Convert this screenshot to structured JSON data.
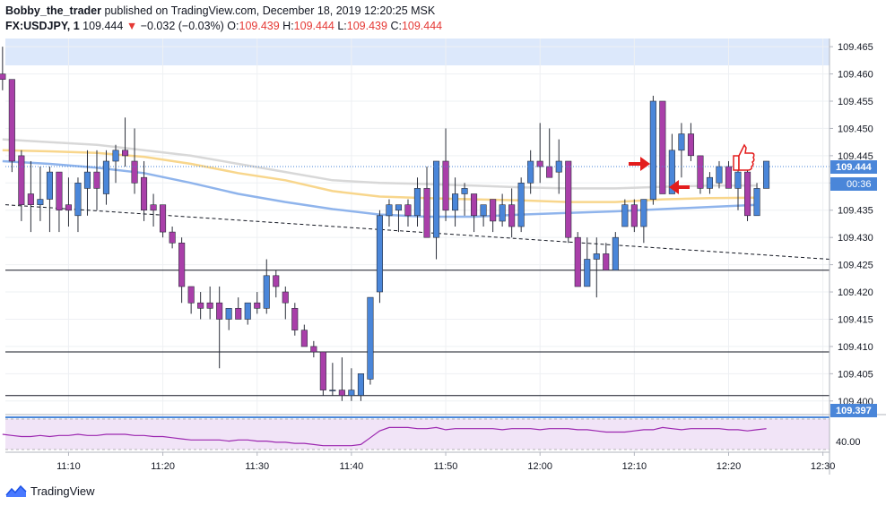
{
  "header": {
    "author": "Bobby_the_trader",
    "published": "published on TradingView.com, December 18, 2019 12:20:25 MSK",
    "symbol": "FX:USDJPY, 1",
    "last": "109.444",
    "change": "−0.032 (−0.03%)",
    "o_label": "O:",
    "o_val": "109.439",
    "h_label": "H:",
    "h_val": "109.444",
    "l_label": "L:",
    "l_val": "109.439",
    "c_label": "C:",
    "c_val": "109.444"
  },
  "footer": {
    "brand": "TradingView"
  },
  "colors": {
    "up": "#4a86d9",
    "down": "#a93fa9",
    "ma_gray": "#d8d8d8",
    "ma_orange": "#f8d68c",
    "ma_blue": "#8fb4ec",
    "accent": "#4a86d9",
    "rsi": "#9c27b0",
    "marker": "#e31c1c"
  },
  "chart_data": {
    "type": "candlestick",
    "symbol": "FX:USDJPY",
    "timeframe": "1",
    "y_ticks": [
      "109.465",
      "109.460",
      "109.455",
      "109.450",
      "109.445",
      "109.440",
      "109.435",
      "109.430",
      "109.425",
      "109.420",
      "109.415",
      "109.410",
      "109.405",
      "109.400"
    ],
    "x_ticks": [
      "11:10",
      "11:20",
      "11:30",
      "11:40",
      "11:50",
      "12:00",
      "12:10",
      "12:20",
      "12:30"
    ],
    "ylim": [
      109.3975,
      109.4665
    ],
    "xlim_minutes": [
      663.3,
      750.7
    ],
    "price_label": "109.444",
    "countdown_label": "00:36",
    "support_label": "109.397",
    "rsi_label": "40.00",
    "horizontal_lines": [
      109.424,
      109.409,
      109.401
    ],
    "highlight_line": 109.397,
    "trend_line": {
      "from": [
        663.3,
        109.436
      ],
      "to": [
        750.7,
        109.426
      ]
    },
    "candles": [
      {
        "t": 663,
        "o": 109.46,
        "h": 109.465,
        "l": 109.457,
        "c": 109.459
      },
      {
        "t": 664,
        "o": 109.459,
        "h": 109.459,
        "l": 109.442,
        "c": 109.444
      },
      {
        "t": 665,
        "o": 109.445,
        "h": 109.446,
        "l": 109.433,
        "c": 109.436
      },
      {
        "t": 666,
        "o": 109.438,
        "h": 109.444,
        "l": 109.431,
        "c": 109.436
      },
      {
        "t": 667,
        "o": 109.436,
        "h": 109.443,
        "l": 109.433,
        "c": 109.437
      },
      {
        "t": 668,
        "o": 109.437,
        "h": 109.443,
        "l": 109.431,
        "c": 109.442
      },
      {
        "t": 669,
        "o": 109.442,
        "h": 109.442,
        "l": 109.431,
        "c": 109.435
      },
      {
        "t": 670,
        "o": 109.436,
        "h": 109.441,
        "l": 109.432,
        "c": 109.435
      },
      {
        "t": 671,
        "o": 109.434,
        "h": 109.441,
        "l": 109.431,
        "c": 109.44
      },
      {
        "t": 672,
        "o": 109.439,
        "h": 109.446,
        "l": 109.434,
        "c": 109.442
      },
      {
        "t": 673,
        "o": 109.442,
        "h": 109.446,
        "l": 109.435,
        "c": 109.439
      },
      {
        "t": 674,
        "o": 109.438,
        "h": 109.446,
        "l": 109.436,
        "c": 109.444
      },
      {
        "t": 675,
        "o": 109.444,
        "h": 109.447,
        "l": 109.44,
        "c": 109.446
      },
      {
        "t": 676,
        "o": 109.446,
        "h": 109.452,
        "l": 109.443,
        "c": 109.445
      },
      {
        "t": 677,
        "o": 109.444,
        "h": 109.45,
        "l": 109.438,
        "c": 109.44
      },
      {
        "t": 678,
        "o": 109.441,
        "h": 109.444,
        "l": 109.433,
        "c": 109.435
      },
      {
        "t": 679,
        "o": 109.436,
        "h": 109.438,
        "l": 109.432,
        "c": 109.435
      },
      {
        "t": 680,
        "o": 109.436,
        "h": 109.436,
        "l": 109.43,
        "c": 109.431
      },
      {
        "t": 681,
        "o": 109.431,
        "h": 109.432,
        "l": 109.428,
        "c": 109.429
      },
      {
        "t": 682,
        "o": 109.429,
        "h": 109.43,
        "l": 109.418,
        "c": 109.421
      },
      {
        "t": 683,
        "o": 109.421,
        "h": 109.421,
        "l": 109.416,
        "c": 109.418
      },
      {
        "t": 684,
        "o": 109.418,
        "h": 109.42,
        "l": 109.415,
        "c": 109.417
      },
      {
        "t": 685,
        "o": 109.418,
        "h": 109.421,
        "l": 109.415,
        "c": 109.417
      },
      {
        "t": 686,
        "o": 109.418,
        "h": 109.421,
        "l": 109.406,
        "c": 109.415
      },
      {
        "t": 687,
        "o": 109.415,
        "h": 109.417,
        "l": 109.413,
        "c": 109.417
      },
      {
        "t": 688,
        "o": 109.417,
        "h": 109.419,
        "l": 109.415,
        "c": 109.415
      },
      {
        "t": 689,
        "o": 109.415,
        "h": 109.418,
        "l": 109.414,
        "c": 109.418
      },
      {
        "t": 690,
        "o": 109.418,
        "h": 109.42,
        "l": 109.416,
        "c": 109.417
      },
      {
        "t": 691,
        "o": 109.417,
        "h": 109.426,
        "l": 109.416,
        "c": 109.423
      },
      {
        "t": 692,
        "o": 109.423,
        "h": 109.424,
        "l": 109.419,
        "c": 109.421
      },
      {
        "t": 693,
        "o": 109.42,
        "h": 109.421,
        "l": 109.415,
        "c": 109.418
      },
      {
        "t": 694,
        "o": 109.417,
        "h": 109.418,
        "l": 109.412,
        "c": 109.413
      },
      {
        "t": 695,
        "o": 109.413,
        "h": 109.414,
        "l": 109.41,
        "c": 109.41
      },
      {
        "t": 696,
        "o": 109.41,
        "h": 109.411,
        "l": 109.408,
        "c": 109.409
      },
      {
        "t": 697,
        "o": 109.409,
        "h": 109.409,
        "l": 109.401,
        "c": 109.402
      },
      {
        "t": 698,
        "o": 109.402,
        "h": 109.407,
        "l": 109.401,
        "c": 109.402
      },
      {
        "t": 699,
        "o": 109.402,
        "h": 109.408,
        "l": 109.4,
        "c": 109.401
      },
      {
        "t": 700,
        "o": 109.401,
        "h": 109.406,
        "l": 109.4,
        "c": 109.402
      },
      {
        "t": 701,
        "o": 109.401,
        "h": 109.405,
        "l": 109.4,
        "c": 109.405
      },
      {
        "t": 702,
        "o": 109.404,
        "h": 109.419,
        "l": 109.403,
        "c": 109.419
      },
      {
        "t": 703,
        "o": 109.42,
        "h": 109.435,
        "l": 109.418,
        "c": 109.434
      },
      {
        "t": 704,
        "o": 109.434,
        "h": 109.437,
        "l": 109.432,
        "c": 109.436
      },
      {
        "t": 705,
        "o": 109.435,
        "h": 109.436,
        "l": 109.431,
        "c": 109.436
      },
      {
        "t": 706,
        "o": 109.436,
        "h": 109.437,
        "l": 109.432,
        "c": 109.434
      },
      {
        "t": 707,
        "o": 109.434,
        "h": 109.441,
        "l": 109.432,
        "c": 109.439
      },
      {
        "t": 708,
        "o": 109.439,
        "h": 109.443,
        "l": 109.43,
        "c": 109.43
      },
      {
        "t": 709,
        "o": 109.43,
        "h": 109.444,
        "l": 109.426,
        "c": 109.444
      },
      {
        "t": 710,
        "o": 109.444,
        "h": 109.45,
        "l": 109.433,
        "c": 109.435
      },
      {
        "t": 711,
        "o": 109.435,
        "h": 109.441,
        "l": 109.432,
        "c": 109.438
      },
      {
        "t": 712,
        "o": 109.438,
        "h": 109.44,
        "l": 109.434,
        "c": 109.439
      },
      {
        "t": 713,
        "o": 109.438,
        "h": 109.438,
        "l": 109.431,
        "c": 109.434
      },
      {
        "t": 714,
        "o": 109.434,
        "h": 109.436,
        "l": 109.432,
        "c": 109.436
      },
      {
        "t": 715,
        "o": 109.437,
        "h": 109.437,
        "l": 109.431,
        "c": 109.433
      },
      {
        "t": 716,
        "o": 109.433,
        "h": 109.438,
        "l": 109.432,
        "c": 109.436
      },
      {
        "t": 717,
        "o": 109.436,
        "h": 109.439,
        "l": 109.43,
        "c": 109.432
      },
      {
        "t": 718,
        "o": 109.432,
        "h": 109.441,
        "l": 109.431,
        "c": 109.44
      },
      {
        "t": 719,
        "o": 109.44,
        "h": 109.446,
        "l": 109.438,
        "c": 109.444
      },
      {
        "t": 720,
        "o": 109.444,
        "h": 109.451,
        "l": 109.44,
        "c": 109.443
      },
      {
        "t": 721,
        "o": 109.443,
        "h": 109.45,
        "l": 109.441,
        "c": 109.441
      },
      {
        "t": 722,
        "o": 109.442,
        "h": 109.448,
        "l": 109.438,
        "c": 109.444
      },
      {
        "t": 723,
        "o": 109.444,
        "h": 109.444,
        "l": 109.429,
        "c": 109.43
      },
      {
        "t": 724,
        "o": 109.43,
        "h": 109.431,
        "l": 109.421,
        "c": 109.421
      },
      {
        "t": 725,
        "o": 109.421,
        "h": 109.43,
        "l": 109.421,
        "c": 109.426
      },
      {
        "t": 726,
        "o": 109.426,
        "h": 109.43,
        "l": 109.419,
        "c": 109.427
      },
      {
        "t": 727,
        "o": 109.427,
        "h": 109.429,
        "l": 109.424,
        "c": 109.424
      },
      {
        "t": 728,
        "o": 109.424,
        "h": 109.431,
        "l": 109.424,
        "c": 109.43
      },
      {
        "t": 729,
        "o": 109.432,
        "h": 109.437,
        "l": 109.432,
        "c": 109.436
      },
      {
        "t": 730,
        "o": 109.436,
        "h": 109.437,
        "l": 109.431,
        "c": 109.432
      },
      {
        "t": 731,
        "o": 109.432,
        "h": 109.437,
        "l": 109.429,
        "c": 109.437
      },
      {
        "t": 732,
        "o": 109.437,
        "h": 109.456,
        "l": 109.436,
        "c": 109.455
      },
      {
        "t": 733,
        "o": 109.455,
        "h": 109.455,
        "l": 109.438,
        "c": 109.438
      },
      {
        "t": 734,
        "o": 109.438,
        "h": 109.449,
        "l": 109.438,
        "c": 109.446
      },
      {
        "t": 735,
        "o": 109.446,
        "h": 109.451,
        "l": 109.441,
        "c": 109.449
      },
      {
        "t": 736,
        "o": 109.449,
        "h": 109.451,
        "l": 109.444,
        "c": 109.445
      },
      {
        "t": 737,
        "o": 109.445,
        "h": 109.445,
        "l": 109.438,
        "c": 109.439
      },
      {
        "t": 738,
        "o": 109.439,
        "h": 109.442,
        "l": 109.438,
        "c": 109.441
      },
      {
        "t": 739,
        "o": 109.44,
        "h": 109.444,
        "l": 109.439,
        "c": 109.443
      },
      {
        "t": 740,
        "o": 109.443,
        "h": 109.444,
        "l": 109.439,
        "c": 109.439
      },
      {
        "t": 741,
        "o": 109.439,
        "h": 109.443,
        "l": 109.435,
        "c": 109.442
      },
      {
        "t": 742,
        "o": 109.442,
        "h": 109.443,
        "l": 109.433,
        "c": 109.434
      },
      {
        "t": 743,
        "o": 109.434,
        "h": 109.44,
        "l": 109.434,
        "c": 109.439
      },
      {
        "t": 744,
        "o": 109.439,
        "h": 109.444,
        "l": 109.439,
        "c": 109.444
      }
    ],
    "ma_lines": [
      {
        "color": "#d8d8d8",
        "points": [
          [
            663,
            109.448
          ],
          [
            668,
            109.4475
          ],
          [
            673,
            109.447
          ],
          [
            678,
            109.446
          ],
          [
            683,
            109.445
          ],
          [
            688,
            109.4435
          ],
          [
            693,
            109.442
          ],
          [
            698,
            109.4405
          ],
          [
            703,
            109.44
          ],
          [
            708,
            109.4398
          ],
          [
            713,
            109.4395
          ],
          [
            718,
            109.4392
          ],
          [
            723,
            109.439
          ],
          [
            728,
            109.439
          ],
          [
            733,
            109.4393
          ],
          [
            738,
            109.4395
          ],
          [
            743,
            109.4395
          ]
        ]
      },
      {
        "color": "#f8d68c",
        "points": [
          [
            663,
            109.446
          ],
          [
            668,
            109.4458
          ],
          [
            673,
            109.4455
          ],
          [
            678,
            109.4448
          ],
          [
            683,
            109.4435
          ],
          [
            688,
            109.4418
          ],
          [
            693,
            109.4405
          ],
          [
            698,
            109.4385
          ],
          [
            703,
            109.4375
          ],
          [
            708,
            109.4372
          ],
          [
            713,
            109.437
          ],
          [
            718,
            109.4368
          ],
          [
            723,
            109.4365
          ],
          [
            728,
            109.4365
          ],
          [
            733,
            109.437
          ],
          [
            738,
            109.4372
          ],
          [
            743,
            109.4373
          ]
        ]
      },
      {
        "color": "#8fb4ec",
        "points": [
          [
            663,
            109.444
          ],
          [
            668,
            109.4435
          ],
          [
            673,
            109.4428
          ],
          [
            678,
            109.4418
          ],
          [
            683,
            109.44
          ],
          [
            688,
            109.438
          ],
          [
            693,
            109.4365
          ],
          [
            698,
            109.4352
          ],
          [
            703,
            109.4342
          ],
          [
            708,
            109.4338
          ],
          [
            713,
            109.4338
          ],
          [
            718,
            109.4342
          ],
          [
            723,
            109.4345
          ],
          [
            728,
            109.4348
          ],
          [
            733,
            109.4352
          ],
          [
            738,
            109.4356
          ],
          [
            743,
            109.436
          ]
        ]
      }
    ],
    "rsi": [
      35,
      34,
      33,
      33,
      34,
      33,
      34,
      34,
      35,
      34,
      34,
      35,
      35,
      35,
      34,
      34,
      33,
      33,
      32,
      31,
      30,
      30,
      30,
      30,
      29,
      30,
      30,
      29,
      29,
      28,
      28,
      27,
      27,
      26,
      25,
      25,
      25,
      25,
      26,
      32,
      38,
      41,
      41,
      41,
      40,
      40,
      41,
      39,
      40,
      40,
      40,
      40,
      40,
      39,
      40,
      40,
      40,
      39,
      40,
      40,
      40,
      39,
      39,
      38,
      37,
      37,
      37,
      38,
      39,
      39,
      41,
      40,
      39,
      40,
      40,
      40,
      40,
      39,
      39,
      38,
      39,
      40
    ]
  }
}
